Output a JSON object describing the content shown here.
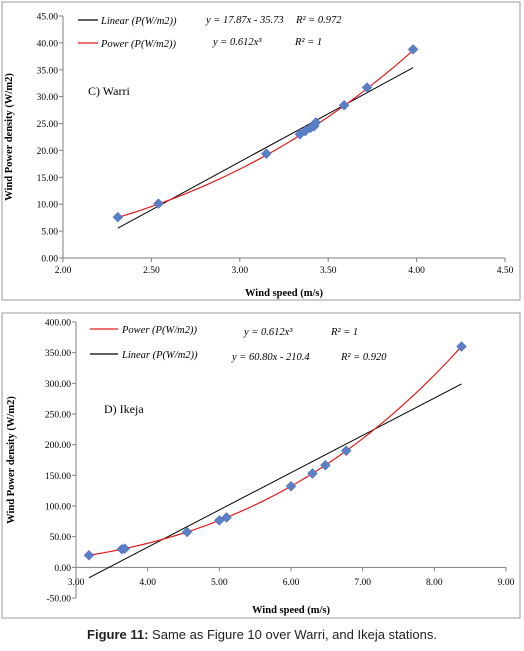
{
  "caption": {
    "label": "Figure 11:",
    "text": " Same as Figure 10 over Warri, and Ikeja stations."
  },
  "chart_data": [
    {
      "type": "scatter",
      "panel_label": "C) Warri",
      "xlabel": "Wind speed (m/s)",
      "ylabel": "Wind Power density (W/m2)",
      "xlim": [
        2.0,
        4.5
      ],
      "ylim": [
        0.0,
        45.0
      ],
      "xticks": [
        2.0,
        2.5,
        3.0,
        3.5,
        4.0,
        4.5
      ],
      "xtick_labels": [
        "2.00",
        "2.50",
        "3.00",
        "3.50",
        "4.00",
        "4.50"
      ],
      "yticks": [
        0,
        5,
        10,
        15,
        20,
        25,
        30,
        35,
        40,
        45
      ],
      "ytick_labels": [
        "0.00",
        "5.00",
        "10.00",
        "15.00",
        "20.00",
        "25.00",
        "30.00",
        "35.00",
        "40.00",
        "45.00"
      ],
      "grid": false,
      "legend_position": "top-left",
      "legend": [
        {
          "name": "Linear (P(W/m2))",
          "equation": "y = 17.87x - 35.73",
          "r2": "R² = 0.972",
          "color": "#000000"
        },
        {
          "name": "Power (P(W/m2))",
          "equation": "y = 0.612x³",
          "r2": "R² = 1",
          "color": "#e31a1c"
        }
      ],
      "series": [
        {
          "points": [
            [
              2.31,
              7.6
            ],
            [
              2.54,
              10.1
            ],
            [
              3.15,
              19.4
            ],
            [
              3.34,
              23.0
            ],
            [
              3.37,
              23.6
            ],
            [
              3.4,
              24.2
            ],
            [
              3.42,
              24.5
            ],
            [
              3.43,
              25.2
            ],
            [
              3.59,
              28.4
            ],
            [
              3.72,
              31.7
            ],
            [
              3.98,
              38.8
            ]
          ],
          "marker_color": "#5b7fc7",
          "marker": "diamond"
        }
      ],
      "trend_linear": {
        "slope": 17.87,
        "intercept": -35.73,
        "x_range": [
          2.31,
          3.98
        ]
      },
      "trend_power": {
        "coef": 0.612,
        "exponent": 3,
        "x_range": [
          2.31,
          3.98
        ]
      }
    },
    {
      "type": "scatter",
      "panel_label": "D) Ikeja",
      "xlabel": "Wind speed (m/s)",
      "ylabel": "Wind Power density (W/m2)",
      "xlim": [
        3.0,
        9.0
      ],
      "ylim": [
        -50.0,
        400.0
      ],
      "xticks": [
        3,
        4,
        5,
        6,
        7,
        8,
        9
      ],
      "xtick_labels": [
        "3.00",
        "4.00",
        "5.00",
        "6.00",
        "7.00",
        "8.00",
        "9.00"
      ],
      "yticks": [
        -50,
        0,
        50,
        100,
        150,
        200,
        250,
        300,
        350,
        400
      ],
      "ytick_labels": [
        "-50.00",
        "0.00",
        "50.00",
        "100.00",
        "150.00",
        "200.00",
        "250.00",
        "300.00",
        "350.00",
        "400.00"
      ],
      "grid": false,
      "legend_position": "top-left",
      "legend": [
        {
          "name": "Power (P(W/m2))",
          "equation": "y = 0.612x³",
          "r2": "R² = 1",
          "color": "#e31a1c"
        },
        {
          "name": "Linear (P(W/m2))",
          "equation": "y = 60.80x - 210.4",
          "r2": "R² = 0.920",
          "color": "#000000"
        }
      ],
      "series": [
        {
          "points": [
            [
              3.18,
              19.6
            ],
            [
              3.64,
              29.5
            ],
            [
              3.68,
              30.5
            ],
            [
              4.55,
              57.6
            ],
            [
              5.0,
              76.5
            ],
            [
              5.1,
              81.2
            ],
            [
              6.0,
              132.2
            ],
            [
              6.3,
              153.0
            ],
            [
              6.48,
              166.5
            ],
            [
              6.77,
              190.0
            ],
            [
              8.38,
              360.0
            ]
          ],
          "marker_color": "#5b7fc7",
          "marker": "diamond"
        }
      ],
      "trend_linear": {
        "slope": 60.8,
        "intercept": -210.4,
        "x_range": [
          3.18,
          8.38
        ]
      },
      "trend_power": {
        "coef": 0.612,
        "exponent": 3,
        "x_range": [
          3.18,
          8.38
        ]
      }
    }
  ]
}
